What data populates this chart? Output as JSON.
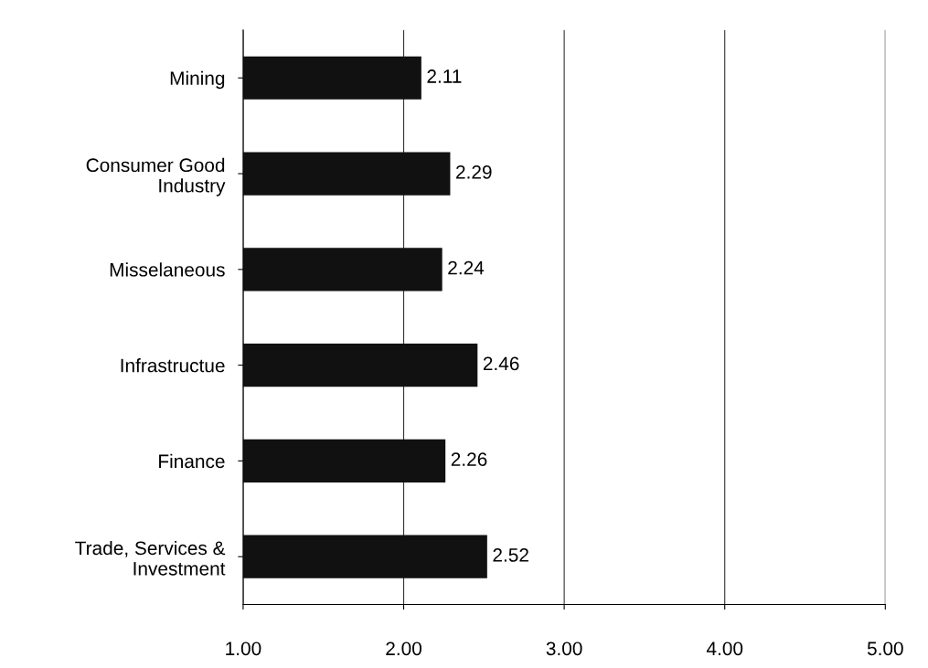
{
  "chart_data": {
    "type": "bar",
    "orientation": "horizontal",
    "categories": [
      "Mining",
      "Consumer Good\nIndustry",
      "Misselaneous",
      "Infrastructue",
      "Finance",
      "Trade, Services &\nInvestment"
    ],
    "values": [
      2.11,
      2.29,
      2.24,
      2.46,
      2.26,
      2.52
    ],
    "color": "#111111",
    "xlim": [
      1,
      5
    ],
    "xticks": [
      {
        "value": 1,
        "label": "1.00"
      },
      {
        "value": 2,
        "label": "2.00"
      },
      {
        "value": 3,
        "label": "3.00"
      },
      {
        "value": 4,
        "label": "4.00"
      },
      {
        "value": 5,
        "label": "5.00"
      }
    ],
    "grid": "x",
    "data_labels": true
  }
}
